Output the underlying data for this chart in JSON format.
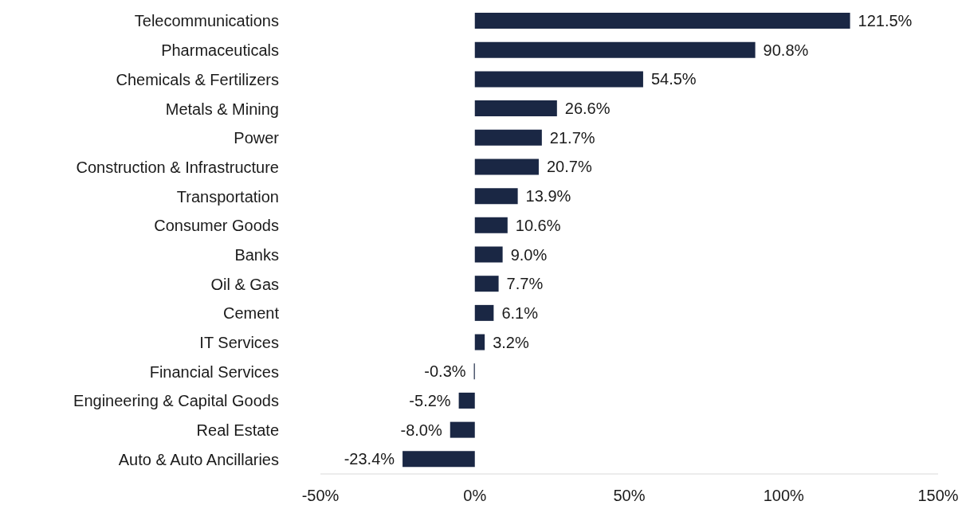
{
  "chart_data": {
    "type": "bar",
    "orientation": "horizontal",
    "categories": [
      "Telecommunications",
      "Pharmaceuticals",
      "Chemicals & Fertilizers",
      "Metals & Mining",
      "Power",
      "Construction & Infrastructure",
      "Transportation",
      "Consumer Goods",
      "Banks",
      "Oil & Gas",
      "Cement",
      "IT Services",
      "Financial Services",
      "Engineering & Capital Goods",
      "Real Estate",
      "Auto & Auto Ancillaries"
    ],
    "values": [
      121.5,
      90.8,
      54.5,
      26.6,
      21.7,
      20.7,
      13.9,
      10.6,
      9.0,
      7.7,
      6.1,
      3.2,
      -0.3,
      -5.2,
      -8.0,
      -23.4
    ],
    "value_labels": [
      "121.5%",
      "90.8%",
      "54.5%",
      "26.6%",
      "21.7%",
      "20.7%",
      "13.9%",
      "10.6%",
      "9.0%",
      "7.7%",
      "6.1%",
      "3.2%",
      "-0.3%",
      "-5.2%",
      "-8.0%",
      "-23.4%"
    ],
    "color": "#1a2744",
    "xlim": [
      -50,
      150
    ],
    "xticks": [
      {
        "value": -50,
        "label": "-50%"
      },
      {
        "value": 0,
        "label": "0%"
      },
      {
        "value": 50,
        "label": "50%"
      },
      {
        "value": 100,
        "label": "100%"
      },
      {
        "value": 150,
        "label": "150%"
      }
    ],
    "grid": false,
    "legend": false
  }
}
